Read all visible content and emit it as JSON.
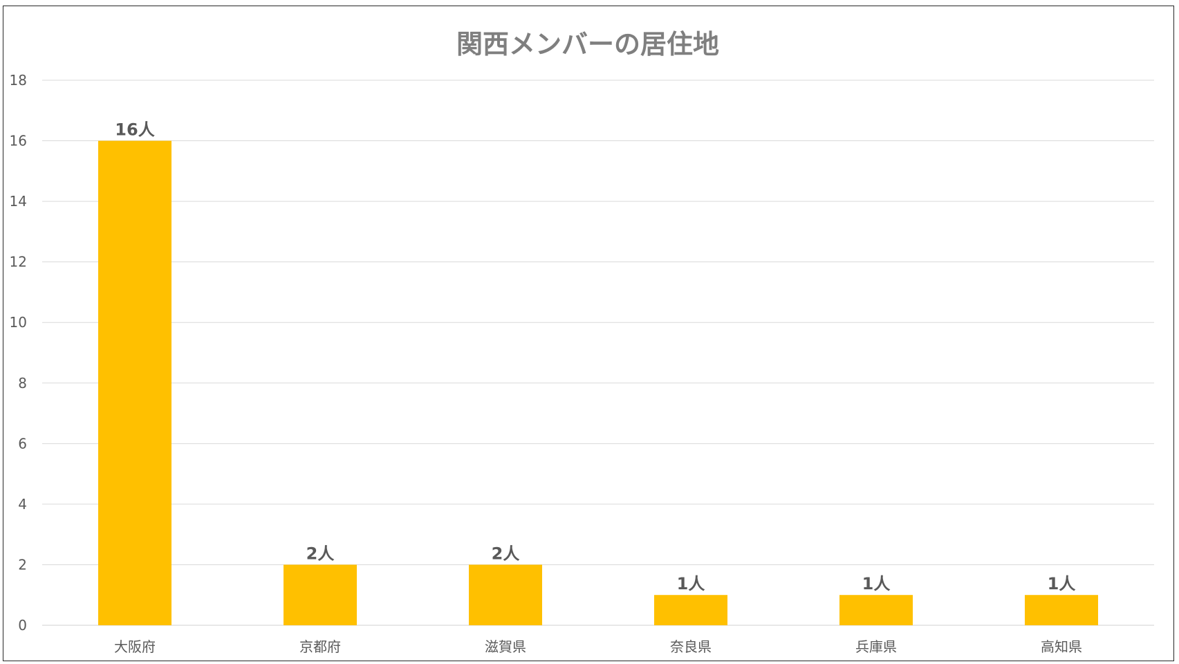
{
  "chart_data": {
    "type": "bar",
    "title": "関西メンバーの居住地",
    "xlabel": "",
    "ylabel": "",
    "categories": [
      "大阪府",
      "京都府",
      "滋賀県",
      "奈良県",
      "兵庫県",
      "高知県"
    ],
    "values": [
      16,
      2,
      2,
      1,
      1,
      1
    ],
    "data_labels": [
      "16人",
      "2人",
      "2人",
      "1人",
      "1人",
      "1人"
    ],
    "ylim": [
      0,
      18
    ],
    "yticks": [
      "0",
      "2",
      "4",
      "6",
      "8",
      "10",
      "12",
      "14",
      "16",
      "18"
    ],
    "grid": true,
    "legend": "none",
    "bar_color": "#FFC000"
  }
}
